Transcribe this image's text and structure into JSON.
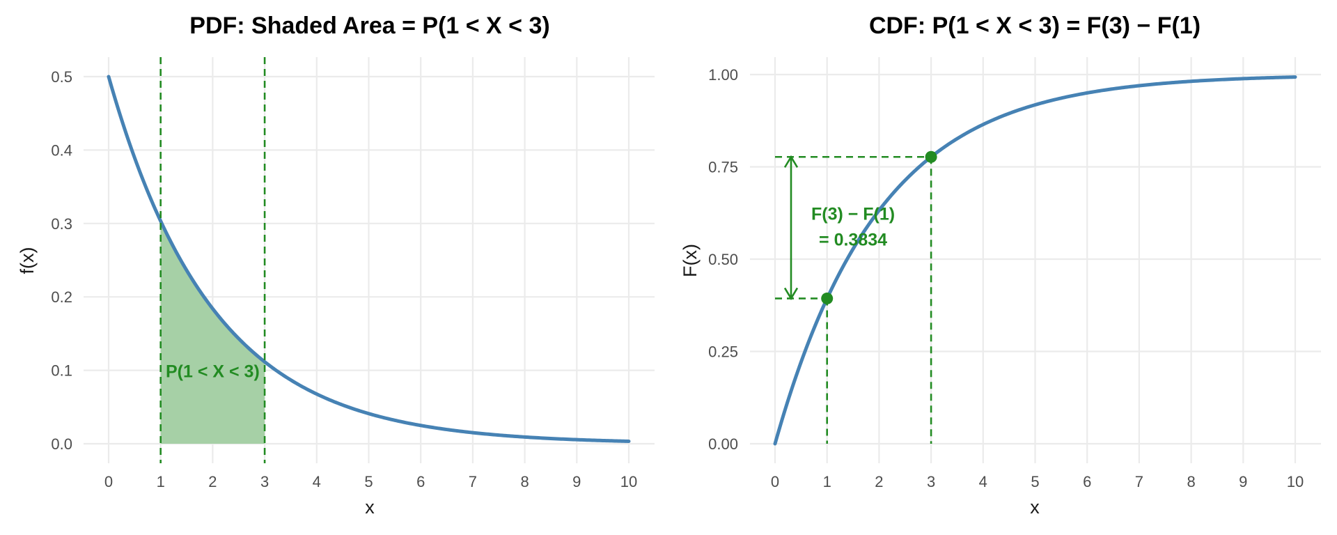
{
  "colors": {
    "curve": "#4682b4",
    "annotation": "#228b22",
    "shade": "#a6d0a6",
    "grid": "#ebebeb"
  },
  "chart_data": [
    {
      "type": "area",
      "title": "PDF: Shaded Area = P(1 < X < 3)",
      "xlabel": "x",
      "ylabel": "f(x)",
      "xlim": [
        0,
        10
      ],
      "ylim": [
        0,
        0.5
      ],
      "x_ticks": [
        0,
        1,
        2,
        3,
        4,
        5,
        6,
        7,
        8,
        9,
        10
      ],
      "y_ticks": [
        0.0,
        0.1,
        0.2,
        0.3,
        0.4,
        0.5
      ],
      "y_tick_labels": [
        "0.0",
        "0.1",
        "0.2",
        "0.3",
        "0.4",
        "0.5"
      ],
      "grid": true,
      "series": [
        {
          "x": [
            0,
            1,
            2,
            3,
            4,
            5,
            6,
            7,
            8,
            9,
            10
          ],
          "values": [
            0.5,
            0.303,
            0.184,
            0.112,
            0.068,
            0.041,
            0.025,
            0.015,
            0.009,
            0.006,
            0.003
          ]
        }
      ],
      "shaded_range": [
        1,
        3
      ],
      "vlines": [
        1,
        3
      ],
      "annotation": {
        "text": "P(1 < X < 3)",
        "x": 2,
        "y": 0.097
      }
    },
    {
      "type": "line",
      "title": "CDF: P(1 < X < 3) = F(3) − F(1)",
      "xlabel": "x",
      "ylabel": "F(x)",
      "xlim": [
        0,
        10
      ],
      "ylim": [
        0,
        1
      ],
      "x_ticks": [
        0,
        1,
        2,
        3,
        4,
        5,
        6,
        7,
        8,
        9,
        10
      ],
      "y_ticks": [
        0.0,
        0.25,
        0.5,
        0.75,
        1.0
      ],
      "y_tick_labels": [
        "0.00",
        "0.25",
        "0.50",
        "0.75",
        "1.00"
      ],
      "grid": true,
      "series": [
        {
          "x": [
            0,
            1,
            2,
            3,
            4,
            5,
            6,
            7,
            8,
            9,
            10
          ],
          "values": [
            0.0,
            0.3935,
            0.6321,
            0.7769,
            0.8647,
            0.9179,
            0.9502,
            0.9698,
            0.9817,
            0.9889,
            0.9933
          ]
        }
      ],
      "points": [
        {
          "x": 1,
          "y": 0.3935
        },
        {
          "x": 3,
          "y": 0.7769
        }
      ],
      "annotation": {
        "line1": "F(3) − F(1)",
        "line2": "= 0.3834",
        "x": 1.5,
        "y": 0.585
      }
    }
  ]
}
